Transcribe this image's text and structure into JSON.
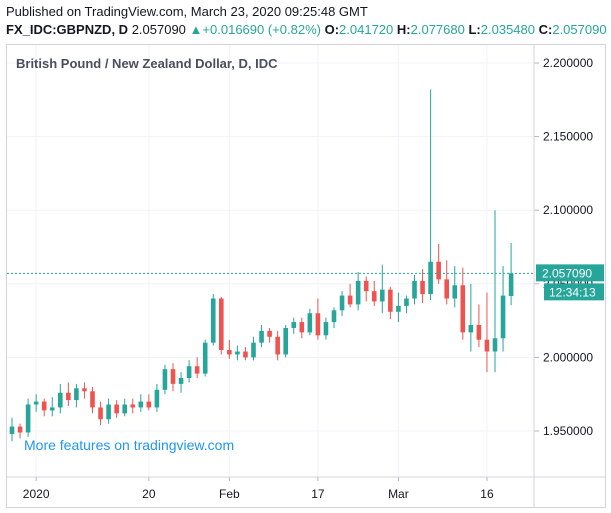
{
  "header": {
    "published": "Published on TradingView.com, March 23, 2020 09:25:48 GMT",
    "symbol": "FX_IDC:GBPNZD, D",
    "last": "2.057090",
    "change_arrow": "▲",
    "change": "+0.016690 (+0.82%)",
    "open_label": "O:",
    "open": "2.041720",
    "high_label": "H:",
    "high": "2.077680",
    "low_label": "L:",
    "low": "2.035480",
    "close_label": "C:",
    "close": "2.057090"
  },
  "promo": "More features on tradingview.com",
  "colors": {
    "up": "#26a69a",
    "down": "#ef5350",
    "grid": "#f0f3fa",
    "accent": "#2196f3"
  },
  "chart_data": {
    "type": "candlestick",
    "title": "British Pound / New Zealand Dollar, D, IDC",
    "ylim": [
      1.935,
      2.205
    ],
    "y_ticks": [
      "2.200000",
      "2.150000",
      "2.100000",
      "2.050000",
      "2.000000",
      "1.950000"
    ],
    "x_ticks": [
      {
        "label": "2020",
        "index": 3
      },
      {
        "label": "20",
        "index": 17
      },
      {
        "label": "Feb",
        "index": 27
      },
      {
        "label": "17",
        "index": 38
      },
      {
        "label": "Mar",
        "index": 48
      },
      {
        "label": "16",
        "index": 59
      }
    ],
    "price_line": 2.05709,
    "price_tag": "2.057090",
    "time_tag": "12:34:13",
    "candles": [
      {
        "o": 1.948,
        "h": 1.959,
        "l": 1.943,
        "c": 1.953
      },
      {
        "o": 1.953,
        "h": 1.955,
        "l": 1.945,
        "c": 1.949
      },
      {
        "o": 1.949,
        "h": 1.972,
        "l": 1.946,
        "c": 1.968
      },
      {
        "o": 1.968,
        "h": 1.975,
        "l": 1.963,
        "c": 1.97
      },
      {
        "o": 1.97,
        "h": 1.972,
        "l": 1.96,
        "c": 1.964
      },
      {
        "o": 1.964,
        "h": 1.973,
        "l": 1.96,
        "c": 1.966
      },
      {
        "o": 1.966,
        "h": 1.982,
        "l": 1.962,
        "c": 1.976
      },
      {
        "o": 1.976,
        "h": 1.983,
        "l": 1.967,
        "c": 1.971
      },
      {
        "o": 1.971,
        "h": 1.982,
        "l": 1.966,
        "c": 1.979
      },
      {
        "o": 1.979,
        "h": 1.983,
        "l": 1.972,
        "c": 1.977
      },
      {
        "o": 1.977,
        "h": 1.98,
        "l": 1.962,
        "c": 1.966
      },
      {
        "o": 1.966,
        "h": 1.97,
        "l": 1.954,
        "c": 1.958
      },
      {
        "o": 1.958,
        "h": 1.972,
        "l": 1.955,
        "c": 1.968
      },
      {
        "o": 1.968,
        "h": 1.971,
        "l": 1.959,
        "c": 1.962
      },
      {
        "o": 1.962,
        "h": 1.972,
        "l": 1.96,
        "c": 1.968
      },
      {
        "o": 1.968,
        "h": 1.972,
        "l": 1.962,
        "c": 1.966
      },
      {
        "o": 1.966,
        "h": 1.975,
        "l": 1.963,
        "c": 1.97
      },
      {
        "o": 1.97,
        "h": 1.975,
        "l": 1.964,
        "c": 1.966
      },
      {
        "o": 1.966,
        "h": 1.982,
        "l": 1.963,
        "c": 1.978
      },
      {
        "o": 1.978,
        "h": 1.995,
        "l": 1.975,
        "c": 1.992
      },
      {
        "o": 1.992,
        "h": 1.996,
        "l": 1.977,
        "c": 1.982
      },
      {
        "o": 1.982,
        "h": 1.99,
        "l": 1.976,
        "c": 1.986
      },
      {
        "o": 1.986,
        "h": 1.998,
        "l": 1.983,
        "c": 1.994
      },
      {
        "o": 1.994,
        "h": 2.0,
        "l": 1.986,
        "c": 1.989
      },
      {
        "o": 1.989,
        "h": 2.012,
        "l": 1.987,
        "c": 2.01
      },
      {
        "o": 2.01,
        "h": 2.043,
        "l": 2.008,
        "c": 2.04
      },
      {
        "o": 2.04,
        "h": 2.041,
        "l": 2.002,
        "c": 2.005
      },
      {
        "o": 2.005,
        "h": 2.012,
        "l": 1.999,
        "c": 2.002
      },
      {
        "o": 2.002,
        "h": 2.008,
        "l": 1.998,
        "c": 2.004
      },
      {
        "o": 2.004,
        "h": 2.007,
        "l": 1.998,
        "c": 2.0
      },
      {
        "o": 2.0,
        "h": 2.014,
        "l": 1.998,
        "c": 2.01
      },
      {
        "o": 2.01,
        "h": 2.022,
        "l": 2.007,
        "c": 2.018
      },
      {
        "o": 2.018,
        "h": 2.02,
        "l": 2.01,
        "c": 2.014
      },
      {
        "o": 2.014,
        "h": 2.018,
        "l": 1.998,
        "c": 2.002
      },
      {
        "o": 2.002,
        "h": 2.022,
        "l": 2.0,
        "c": 2.02
      },
      {
        "o": 2.02,
        "h": 2.027,
        "l": 2.016,
        "c": 2.024
      },
      {
        "o": 2.024,
        "h": 2.027,
        "l": 2.013,
        "c": 2.017
      },
      {
        "o": 2.017,
        "h": 2.033,
        "l": 2.015,
        "c": 2.03
      },
      {
        "o": 2.03,
        "h": 2.04,
        "l": 2.012,
        "c": 2.015
      },
      {
        "o": 2.015,
        "h": 2.027,
        "l": 2.012,
        "c": 2.024
      },
      {
        "o": 2.024,
        "h": 2.034,
        "l": 2.02,
        "c": 2.032
      },
      {
        "o": 2.032,
        "h": 2.045,
        "l": 2.028,
        "c": 2.042
      },
      {
        "o": 2.042,
        "h": 2.05,
        "l": 2.034,
        "c": 2.036
      },
      {
        "o": 2.036,
        "h": 2.058,
        "l": 2.032,
        "c": 2.052
      },
      {
        "o": 2.052,
        "h": 2.055,
        "l": 2.038,
        "c": 2.045
      },
      {
        "o": 2.045,
        "h": 2.052,
        "l": 2.035,
        "c": 2.038
      },
      {
        "o": 2.038,
        "h": 2.063,
        "l": 2.03,
        "c": 2.046
      },
      {
        "o": 2.046,
        "h": 2.048,
        "l": 2.026,
        "c": 2.031
      },
      {
        "o": 2.031,
        "h": 2.044,
        "l": 2.024,
        "c": 2.035
      },
      {
        "o": 2.035,
        "h": 2.042,
        "l": 2.03,
        "c": 2.04
      },
      {
        "o": 2.04,
        "h": 2.056,
        "l": 2.036,
        "c": 2.052
      },
      {
        "o": 2.052,
        "h": 2.06,
        "l": 2.037,
        "c": 2.043
      },
      {
        "o": 2.043,
        "h": 2.182,
        "l": 2.039,
        "c": 2.065
      },
      {
        "o": 2.065,
        "h": 2.077,
        "l": 2.05,
        "c": 2.053
      },
      {
        "o": 2.053,
        "h": 2.066,
        "l": 2.036,
        "c": 2.04
      },
      {
        "o": 2.04,
        "h": 2.062,
        "l": 2.034,
        "c": 2.049
      },
      {
        "o": 2.049,
        "h": 2.061,
        "l": 2.012,
        "c": 2.017
      },
      {
        "o": 2.017,
        "h": 2.05,
        "l": 2.004,
        "c": 2.022
      },
      {
        "o": 2.022,
        "h": 2.036,
        "l": 2.007,
        "c": 2.012
      },
      {
        "o": 2.012,
        "h": 2.044,
        "l": 1.99,
        "c": 2.004
      },
      {
        "o": 2.004,
        "h": 2.1,
        "l": 1.99,
        "c": 2.013
      },
      {
        "o": 2.013,
        "h": 2.062,
        "l": 2.004,
        "c": 2.042
      },
      {
        "o": 2.04172,
        "h": 2.07768,
        "l": 2.03548,
        "c": 2.05709
      }
    ]
  }
}
